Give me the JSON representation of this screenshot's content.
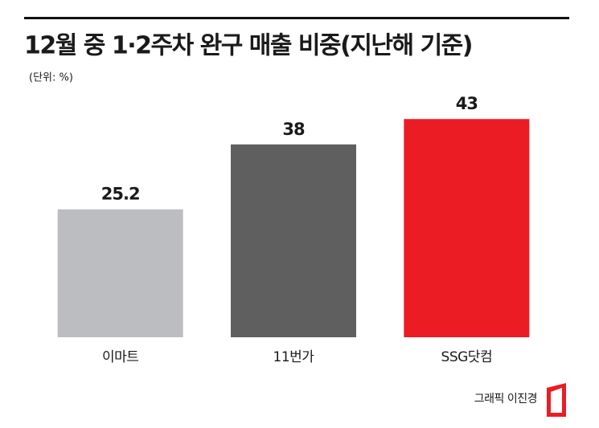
{
  "chart_data": {
    "type": "bar",
    "title": "12월 중 1·2주차 완구 매출 비중(지난해 기준)",
    "subtitle": "(단위: %)",
    "categories": [
      "이마트",
      "11번가",
      "SSG닷컴"
    ],
    "values": [
      25.2,
      38,
      43
    ],
    "colors": [
      "#bcbdc1",
      "#5f5f5f",
      "#ec1c24"
    ],
    "show_value_labels": true
  },
  "credit": "그래픽 이진경"
}
